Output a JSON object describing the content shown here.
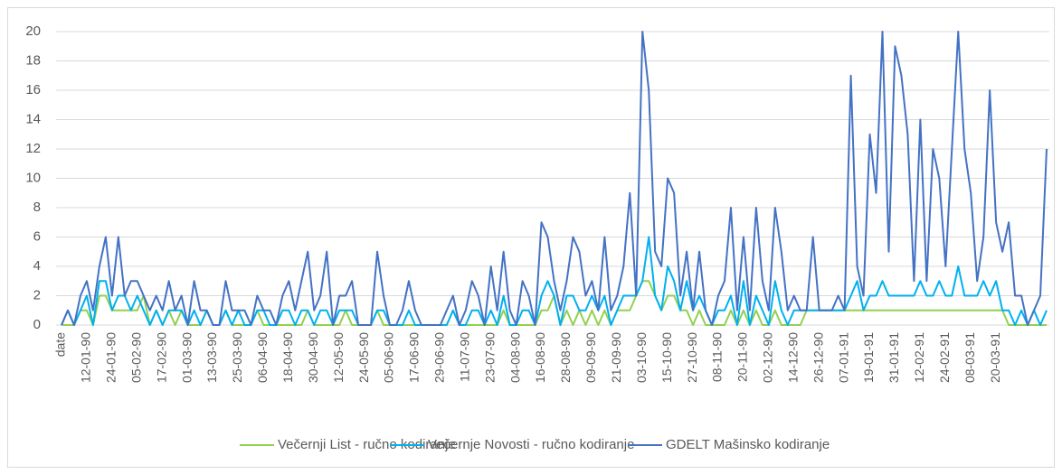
{
  "chart_data": {
    "type": "line",
    "categories": [
      "date",
      null,
      null,
      null,
      "12-01-90",
      null,
      null,
      null,
      "24-01-90",
      null,
      null,
      null,
      "05-02-90",
      null,
      null,
      null,
      "17-02-90",
      null,
      null,
      null,
      "01-03-90",
      null,
      null,
      null,
      "13-03-90",
      null,
      null,
      null,
      "25-03-90",
      null,
      null,
      null,
      "06-04-90",
      null,
      null,
      null,
      "18-04-90",
      null,
      null,
      null,
      "30-04-90",
      null,
      null,
      null,
      "12-05-90",
      null,
      null,
      null,
      "24-05-90",
      null,
      null,
      null,
      "05-06-90",
      null,
      null,
      null,
      "17-06-90",
      null,
      null,
      null,
      "29-06-90",
      null,
      null,
      null,
      "11-07-90",
      null,
      null,
      null,
      "23-07-90",
      null,
      null,
      null,
      "04-08-90",
      null,
      null,
      null,
      "16-08-90",
      null,
      null,
      null,
      "28-08-90",
      null,
      null,
      null,
      "09-09-90",
      null,
      null,
      null,
      "21-09-90",
      null,
      null,
      null,
      "03-10-90",
      null,
      null,
      null,
      "15-10-90",
      null,
      null,
      null,
      "27-10-90",
      null,
      null,
      null,
      "08-11-90",
      null,
      null,
      null,
      "20-11-90",
      null,
      null,
      null,
      "02-12-90",
      null,
      null,
      null,
      "14-12-90",
      null,
      null,
      null,
      "26-12-90",
      null,
      null,
      null,
      "07-01-91",
      null,
      null,
      null,
      "19-01-91",
      null,
      null,
      null,
      "31-01-91",
      null,
      null,
      null,
      "12-02-91",
      null,
      null,
      null,
      "24-02-91",
      null,
      null,
      null,
      "08-03-91",
      null,
      null,
      null,
      "20-03-91",
      null,
      null,
      null,
      null,
      null,
      null,
      null,
      null
    ],
    "series": [
      {
        "name": "Večernji List - ručno kodiranje",
        "color": "#92d050",
        "values": [
          0,
          0,
          0,
          1,
          1,
          0,
          2,
          2,
          1,
          1,
          1,
          1,
          1,
          2,
          0,
          1,
          0,
          1,
          0,
          1,
          0,
          0,
          0,
          1,
          0,
          0,
          1,
          0,
          0,
          0,
          0,
          1,
          0,
          0,
          0,
          0,
          0,
          0,
          0,
          1,
          0,
          0,
          0,
          0,
          0,
          1,
          0,
          0,
          0,
          0,
          1,
          0,
          0,
          0,
          0,
          0,
          0,
          0,
          0,
          0,
          0,
          0,
          1,
          0,
          0,
          0,
          0,
          0,
          0,
          0,
          1,
          0,
          0,
          0,
          0,
          0,
          1,
          1,
          2,
          0,
          1,
          0,
          1,
          0,
          1,
          0,
          1,
          0,
          1,
          1,
          1,
          2,
          3,
          3,
          2,
          1,
          2,
          2,
          1,
          1,
          0,
          1,
          0,
          0,
          0,
          0,
          1,
          0,
          1,
          0,
          1,
          0,
          0,
          1,
          0,
          0,
          0,
          0,
          1,
          1,
          1,
          1,
          1,
          1,
          1,
          1,
          1,
          1,
          1,
          1,
          1,
          1,
          1,
          1,
          1,
          1,
          1,
          1,
          1,
          1,
          1,
          1,
          1,
          1,
          1,
          1,
          1,
          1,
          1,
          1,
          0,
          0,
          0,
          0,
          0,
          0,
          0
        ]
      },
      {
        "name": "Večernje Novosti - ručno kodiranje",
        "color": "#00b0f0",
        "values": [
          0,
          1,
          0,
          1,
          2,
          0,
          3,
          3,
          1,
          2,
          2,
          1,
          2,
          1,
          0,
          1,
          0,
          1,
          1,
          1,
          0,
          1,
          0,
          1,
          0,
          0,
          1,
          0,
          1,
          0,
          0,
          1,
          1,
          0,
          0,
          1,
          1,
          0,
          1,
          1,
          0,
          1,
          1,
          0,
          1,
          1,
          1,
          0,
          0,
          0,
          1,
          1,
          0,
          0,
          0,
          1,
          0,
          0,
          0,
          0,
          0,
          0,
          1,
          0,
          0,
          1,
          1,
          0,
          1,
          0,
          2,
          0,
          0,
          1,
          1,
          0,
          2,
          3,
          2,
          0,
          2,
          2,
          1,
          1,
          2,
          1,
          2,
          0,
          1,
          2,
          2,
          2,
          3,
          6,
          2,
          1,
          4,
          3,
          1,
          3,
          1,
          2,
          1,
          0,
          1,
          1,
          2,
          0,
          3,
          0,
          2,
          1,
          0,
          3,
          1,
          0,
          1,
          1,
          1,
          1,
          1,
          1,
          1,
          1,
          1,
          2,
          3,
          1,
          2,
          2,
          3,
          2,
          2,
          2,
          2,
          2,
          3,
          2,
          2,
          3,
          2,
          2,
          4,
          2,
          2,
          2,
          3,
          2,
          3,
          1,
          1,
          0,
          1,
          0,
          1,
          0,
          1
        ]
      },
      {
        "name": "GDELT Mašinsko kodiranje",
        "color": "#4472c4",
        "values": [
          0,
          1,
          0,
          2,
          3,
          1,
          4,
          6,
          2,
          6,
          2,
          3,
          3,
          2,
          1,
          2,
          1,
          3,
          1,
          2,
          0,
          3,
          1,
          1,
          0,
          0,
          3,
          1,
          1,
          1,
          0,
          2,
          1,
          1,
          0,
          2,
          3,
          1,
          3,
          5,
          1,
          2,
          5,
          0,
          2,
          2,
          3,
          0,
          0,
          0,
          5,
          2,
          0,
          0,
          1,
          3,
          1,
          0,
          0,
          0,
          0,
          1,
          2,
          0,
          1,
          3,
          2,
          0,
          4,
          1,
          5,
          1,
          0,
          3,
          2,
          0,
          7,
          6,
          3,
          1,
          3,
          6,
          5,
          2,
          3,
          1,
          6,
          1,
          2,
          4,
          9,
          2,
          20,
          16,
          5,
          4,
          10,
          9,
          2,
          5,
          1,
          5,
          1,
          0,
          2,
          3,
          8,
          1,
          6,
          1,
          8,
          3,
          1,
          8,
          5,
          1,
          2,
          1,
          1,
          6,
          1,
          1,
          1,
          2,
          1,
          17,
          4,
          2,
          13,
          9,
          20,
          5,
          19,
          17,
          13,
          3,
          14,
          3,
          12,
          10,
          4,
          12,
          20,
          12,
          9,
          3,
          6,
          16,
          7,
          5,
          7,
          2,
          2,
          0,
          1,
          2,
          12
        ]
      }
    ],
    "ylim": [
      0,
      20
    ],
    "yticks": [
      0,
      2,
      4,
      6,
      8,
      10,
      12,
      14,
      16,
      18,
      20
    ],
    "grid": true,
    "legend": "bottom"
  }
}
